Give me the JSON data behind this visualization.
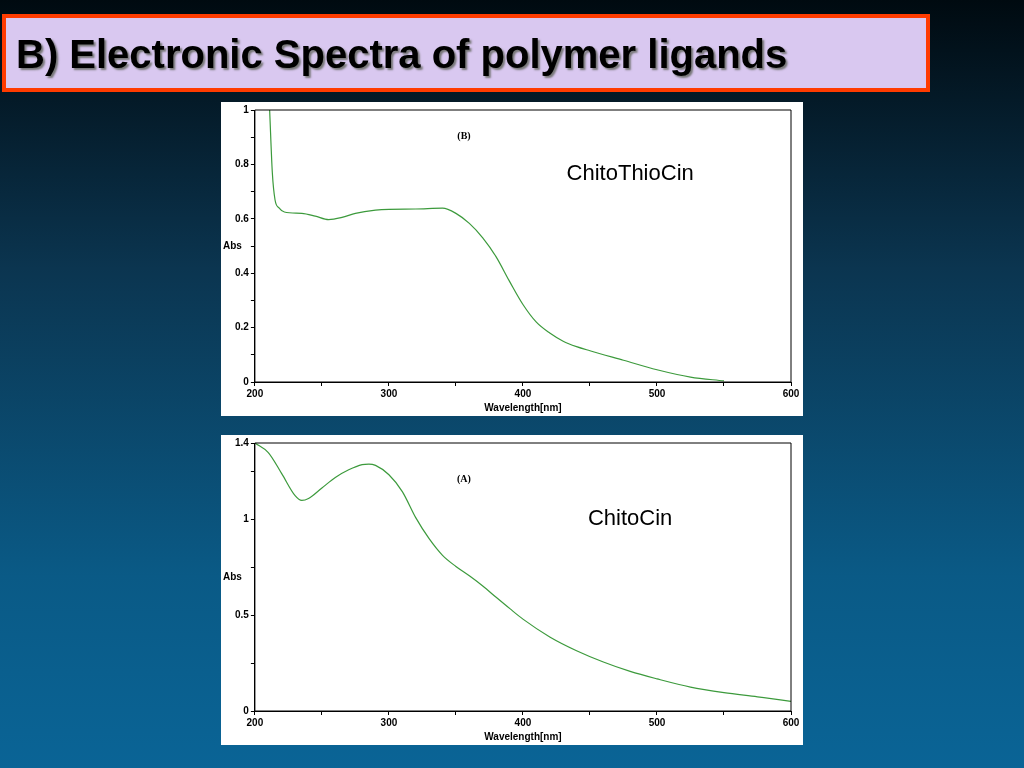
{
  "chart_data": [
    {
      "type": "line",
      "title": "B) Electronic Spectra of polymer ligands",
      "xlabel": "Wavelength[nm]",
      "ylabel": "Abs",
      "annotations": [
        "(B)",
        "ChitoThioCin"
      ],
      "grid": false,
      "legend": false,
      "marker": "none",
      "line_style": "solid",
      "xlim": [
        200,
        600
      ],
      "xticks": [
        200,
        {
          "value": 250,
          "label": null
        },
        300,
        {
          "value": 350,
          "label": null
        },
        400,
        {
          "value": 450,
          "label": null
        },
        500,
        {
          "value": 550,
          "label": null
        },
        600
      ],
      "ylim": [
        0,
        1
      ],
      "yticks": [
        0,
        {
          "value": 0.1,
          "label": null
        },
        0.2,
        {
          "value": 0.3,
          "label": null
        },
        0.4,
        {
          "value": 0.5,
          "label": null
        },
        0.6,
        {
          "value": 0.7,
          "label": null
        },
        0.8,
        {
          "value": 0.9,
          "label": null
        },
        1
      ],
      "series": [
        {
          "color": "#3c9a3c",
          "x": [
            211,
            213,
            215,
            218,
            222,
            235,
            245,
            255,
            265,
            275,
            290,
            300,
            320,
            340,
            350,
            360,
            370,
            380,
            390,
            400,
            410,
            420,
            430,
            440,
            450,
            475,
            500,
            525,
            550
          ],
          "values": [
            1.0,
            0.77,
            0.67,
            0.64,
            0.625,
            0.62,
            0.61,
            0.597,
            0.605,
            0.62,
            0.632,
            0.635,
            0.636,
            0.639,
            0.62,
            0.583,
            0.53,
            0.46,
            0.37,
            0.285,
            0.22,
            0.18,
            0.15,
            0.13,
            0.115,
            0.08,
            0.045,
            0.018,
            0.004
          ]
        }
      ]
    },
    {
      "type": "line",
      "xlabel": "Wavelength[nm]",
      "ylabel": "Abs",
      "annotations": [
        "(A)",
        "ChitoCin"
      ],
      "grid": false,
      "legend": false,
      "marker": "none",
      "line_style": "solid",
      "xlim": [
        200,
        600
      ],
      "xticks": [
        200,
        {
          "value": 250,
          "label": null
        },
        300,
        {
          "value": 350,
          "label": null
        },
        400,
        {
          "value": 450,
          "label": null
        },
        500,
        {
          "value": 550,
          "label": null
        },
        600
      ],
      "ylim": [
        0,
        1.4
      ],
      "yticks": [
        0,
        {
          "value": 0.25,
          "label": null
        },
        0.5,
        {
          "value": 0.75,
          "label": null
        },
        1,
        {
          "value": 1.25,
          "label": null
        },
        1.4
      ],
      "series": [
        {
          "color": "#3c9a3c",
          "x": [
            200,
            210,
            220,
            230,
            235,
            240,
            250,
            260,
            270,
            280,
            285,
            290,
            300,
            310,
            320,
            330,
            340,
            350,
            360,
            370,
            380,
            390,
            400,
            420,
            440,
            460,
            480,
            500,
            525,
            550,
            575,
            600
          ],
          "values": [
            1.4,
            1.35,
            1.24,
            1.125,
            1.1,
            1.11,
            1.165,
            1.22,
            1.26,
            1.287,
            1.29,
            1.283,
            1.234,
            1.146,
            1.01,
            0.9,
            0.813,
            0.755,
            0.706,
            0.653,
            0.594,
            0.536,
            0.48,
            0.387,
            0.315,
            0.256,
            0.207,
            0.168,
            0.125,
            0.096,
            0.074,
            0.05
          ]
        }
      ]
    }
  ]
}
